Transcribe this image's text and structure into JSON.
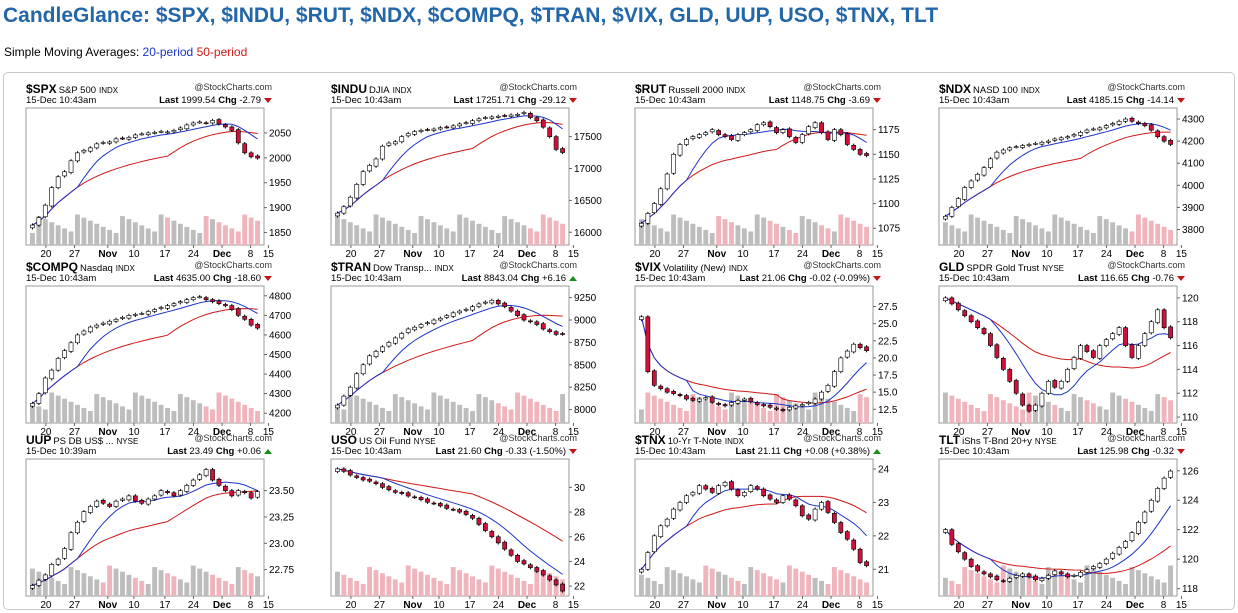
{
  "page": {
    "title": "CandleGlance: $SPX, $INDU, $RUT, $NDX, $COMPQ, $TRAN, $VIX, GLD, UUP, USO, $TNX, TLT",
    "sma_label": "Simple Moving Averages:",
    "sma20_label": "20-period",
    "sma50_label": "50-period",
    "colors": {
      "title": "#2467a8",
      "sma20": "#1d33c9",
      "sma50": "#d01818",
      "up_candle": "#ffffff",
      "down_candle": "#d0103a",
      "volume_up": "#bdbdbd",
      "volume_down": "#f0b4bc"
    }
  },
  "brand": "@StockCharts.com",
  "chart_data": [
    {
      "type": "candlestick",
      "symbol": "$SPX",
      "name": "S&P 500",
      "exchange": "INDX",
      "datetime": "15-Dec 10:43am",
      "last": "1999.54",
      "chg": "-2.79",
      "direction": "down",
      "y_ticks": [
        "2050",
        "2000",
        "1950",
        "1900",
        "1850"
      ],
      "ylim": [
        1825,
        2100
      ],
      "x_ticks": [
        "20",
        "27",
        "Nov",
        "10",
        "17",
        "24",
        "Dec",
        "8",
        "15"
      ],
      "close": [
        1865,
        1880,
        1905,
        1940,
        1962,
        1972,
        1994,
        2010,
        2015,
        2020,
        2028,
        2031,
        2032,
        2038,
        2039,
        2041,
        2046,
        2048,
        2050,
        2051,
        2053,
        2052,
        2055,
        2060,
        2066,
        2070,
        2072,
        2070,
        2075,
        2068,
        2062,
        2055,
        2030,
        2010,
        2002,
        1999.5
      ]
    },
    {
      "type": "candlestick",
      "symbol": "$INDU",
      "name": "DJIA",
      "exchange": "INDX",
      "datetime": "15-Dec 10:43am",
      "last": "17251.71",
      "chg": "-29.12",
      "direction": "down",
      "y_ticks": [
        "17500",
        "17000",
        "16500",
        "16000"
      ],
      "ylim": [
        15800,
        17950
      ],
      "x_ticks": [
        "20",
        "27",
        "Nov",
        "10",
        "17",
        "24",
        "Dec",
        "8",
        "15"
      ],
      "close": [
        16300,
        16400,
        16550,
        16750,
        16950,
        17050,
        17150,
        17350,
        17400,
        17420,
        17500,
        17550,
        17580,
        17600,
        17610,
        17620,
        17640,
        17650,
        17670,
        17700,
        17720,
        17750,
        17780,
        17800,
        17810,
        17820,
        17830,
        17840,
        17850,
        17880,
        17800,
        17750,
        17650,
        17500,
        17300,
        17251.7
      ]
    },
    {
      "type": "candlestick",
      "symbol": "$RUT",
      "name": "Russell 2000",
      "exchange": "INDX",
      "datetime": "15-Dec 10:43am",
      "last": "1148.75",
      "chg": "-3.69",
      "direction": "down",
      "y_ticks": [
        "1175",
        "1150",
        "1125",
        "1100",
        "1075"
      ],
      "ylim": [
        1058,
        1197
      ],
      "x_ticks": [
        "20",
        "27",
        "Nov",
        "10",
        "17",
        "24",
        "Dec",
        "8",
        "15"
      ],
      "close": [
        1080,
        1090,
        1100,
        1115,
        1130,
        1150,
        1160,
        1165,
        1168,
        1170,
        1172,
        1175,
        1170,
        1168,
        1165,
        1170,
        1172,
        1175,
        1180,
        1182,
        1178,
        1172,
        1175,
        1168,
        1162,
        1170,
        1178,
        1182,
        1172,
        1165,
        1175,
        1170,
        1160,
        1155,
        1150,
        1148.75
      ]
    },
    {
      "type": "candlestick",
      "symbol": "$NDX",
      "name": "NASD 100",
      "exchange": "INDX",
      "datetime": "15-Dec 10:43am",
      "last": "4185.15",
      "chg": "-14.14",
      "direction": "down",
      "y_ticks": [
        "4300",
        "4200",
        "4100",
        "4000",
        "3900",
        "3800"
      ],
      "ylim": [
        3730,
        4350
      ],
      "x_ticks": [
        "20",
        "27",
        "Nov",
        "10",
        "17",
        "24",
        "Dec",
        "8",
        "15"
      ],
      "close": [
        3860,
        3900,
        3940,
        3990,
        4020,
        4050,
        4080,
        4120,
        4150,
        4160,
        4170,
        4175,
        4180,
        4185,
        4190,
        4195,
        4200,
        4210,
        4215,
        4220,
        4230,
        4240,
        4250,
        4255,
        4260,
        4270,
        4280,
        4290,
        4300,
        4290,
        4280,
        4270,
        4250,
        4220,
        4200,
        4185.15
      ]
    },
    {
      "type": "candlestick",
      "symbol": "$COMPQ",
      "name": "Nasdaq",
      "exchange": "INDX",
      "datetime": "15-Dec 10:43am",
      "last": "4635.00",
      "chg": "-18.60",
      "direction": "down",
      "y_ticks": [
        "4800",
        "4700",
        "4600",
        "4500",
        "4400",
        "4300",
        "4200"
      ],
      "ylim": [
        4150,
        4850
      ],
      "x_ticks": [
        "20",
        "27",
        "Nov",
        "10",
        "17",
        "24",
        "Dec",
        "8",
        "15"
      ],
      "close": [
        4250,
        4300,
        4380,
        4420,
        4480,
        4520,
        4560,
        4600,
        4620,
        4640,
        4650,
        4660,
        4670,
        4680,
        4690,
        4700,
        4705,
        4710,
        4720,
        4730,
        4740,
        4750,
        4760,
        4770,
        4780,
        4790,
        4795,
        4780,
        4770,
        4760,
        4750,
        4730,
        4700,
        4680,
        4650,
        4635
      ]
    },
    {
      "type": "candlestick",
      "symbol": "$TRAN",
      "name": "Dow Transp...",
      "exchange": "INDX",
      "datetime": "15-Dec 10:43am",
      "last": "8843.04",
      "chg": "+6.16",
      "direction": "up",
      "y_ticks": [
        "9250",
        "9000",
        "8750",
        "8500",
        "8250",
        "8000"
      ],
      "ylim": [
        7850,
        9380
      ],
      "x_ticks": [
        "20",
        "27",
        "Nov",
        "10",
        "17",
        "24",
        "Dec",
        "8",
        "15"
      ],
      "close": [
        8050,
        8150,
        8250,
        8400,
        8500,
        8600,
        8650,
        8700,
        8750,
        8800,
        8850,
        8900,
        8920,
        8950,
        8970,
        9000,
        9020,
        9050,
        9080,
        9100,
        9120,
        9150,
        9180,
        9200,
        9220,
        9180,
        9150,
        9100,
        9050,
        9000,
        8980,
        8950,
        8900,
        8870,
        8840,
        8843
      ]
    },
    {
      "type": "candlestick",
      "symbol": "$VIX",
      "name": "Volatility (New)",
      "exchange": "INDX",
      "datetime": "15-Dec 10:43am",
      "last": "21.06",
      "chg": "-0.02 (-0.09%)",
      "direction": "down",
      "y_ticks": [
        "27.5",
        "25.0",
        "22.5",
        "20.0",
        "17.5",
        "15.0",
        "12.5"
      ],
      "ylim": [
        10.5,
        30.5
      ],
      "x_ticks": [
        "20",
        "27",
        "Nov",
        "10",
        "17",
        "24",
        "Dec",
        "8",
        "15"
      ],
      "close": [
        26,
        18,
        16,
        15.5,
        15,
        14.8,
        14.5,
        14,
        13.8,
        14,
        14.2,
        13.5,
        13.2,
        13,
        13.5,
        13.8,
        14,
        13.6,
        13.2,
        13,
        12.8,
        12.5,
        12.3,
        12.8,
        13,
        13.2,
        13.5,
        14,
        15,
        16,
        18,
        20,
        21,
        22,
        21.5,
        21.06
      ]
    },
    {
      "type": "candlestick",
      "symbol": "GLD",
      "name": "SPDR Gold Trust",
      "exchange": "NYSE",
      "datetime": "15-Dec 10:43am",
      "last": "116.65",
      "chg": "-0.76",
      "direction": "down",
      "y_ticks": [
        "120",
        "118",
        "116",
        "114",
        "112",
        "110"
      ],
      "ylim": [
        109.5,
        121
      ],
      "x_ticks": [
        "20",
        "27",
        "Nov",
        "10",
        "17",
        "24",
        "Dec",
        "8",
        "15"
      ],
      "close": [
        120,
        119.5,
        119,
        118.5,
        118,
        117.5,
        117,
        116,
        115,
        114,
        113,
        112,
        111,
        110.5,
        111,
        112,
        113,
        112.5,
        113,
        114,
        115,
        116,
        115.5,
        115,
        116,
        116.5,
        117,
        117.5,
        116,
        115,
        116,
        117,
        118,
        119,
        117.5,
        116.65
      ]
    },
    {
      "type": "candlestick",
      "symbol": "UUP",
      "name": "PS DB US$ ...",
      "exchange": "NYSE",
      "datetime": "15-Dec 10:39am",
      "last": "23.49",
      "chg": "+0.06",
      "direction": "up",
      "y_ticks": [
        "23.50",
        "23.25",
        "23.00",
        "22.75"
      ],
      "ylim": [
        22.5,
        23.8
      ],
      "x_ticks": [
        "20",
        "27",
        "Nov",
        "10",
        "17",
        "24",
        "Dec",
        "8",
        "15"
      ],
      "close": [
        22.6,
        22.65,
        22.7,
        22.8,
        22.85,
        22.95,
        23.1,
        23.2,
        23.3,
        23.35,
        23.4,
        23.38,
        23.35,
        23.4,
        23.42,
        23.45,
        23.4,
        23.38,
        23.42,
        23.45,
        23.5,
        23.48,
        23.45,
        23.5,
        23.55,
        23.6,
        23.65,
        23.7,
        23.6,
        23.55,
        23.5,
        23.45,
        23.5,
        23.48,
        23.43,
        23.49
      ]
    },
    {
      "type": "candlestick",
      "symbol": "USO",
      "name": "US Oil Fund",
      "exchange": "NYSE",
      "datetime": "15-Dec 10:43am",
      "last": "21.60",
      "chg": "-0.33 (-1.50%)",
      "direction": "down",
      "y_ticks": [
        "30",
        "28",
        "26",
        "24",
        "22"
      ],
      "ylim": [
        21.2,
        32.3
      ],
      "x_ticks": [
        "20",
        "27",
        "Nov",
        "10",
        "17",
        "24",
        "Dec",
        "8",
        "15"
      ],
      "close": [
        31.5,
        31.3,
        31,
        30.8,
        30.6,
        30.5,
        30.3,
        30,
        29.8,
        29.6,
        29.5,
        29.3,
        29.2,
        29,
        28.8,
        28.7,
        28.5,
        28.3,
        28.2,
        28,
        27.8,
        27.5,
        27,
        26.5,
        26,
        25.5,
        25,
        24.5,
        24,
        23.8,
        23.5,
        23.2,
        22.9,
        22.5,
        22.1,
        21.6
      ]
    },
    {
      "type": "candlestick",
      "symbol": "$TNX",
      "name": "10-Yr T-Note",
      "exchange": "INDX",
      "datetime": "15-Dec 10:43am",
      "last": "21.11",
      "chg": "+0.08 (+0.38%)",
      "direction": "up",
      "y_ticks": [
        "24",
        "23",
        "22",
        "21"
      ],
      "ylim": [
        20.2,
        24.3
      ],
      "x_ticks": [
        "20",
        "27",
        "Nov",
        "10",
        "17",
        "24",
        "Dec",
        "8",
        "15"
      ],
      "close": [
        21,
        21.5,
        22,
        22.3,
        22.5,
        22.8,
        23,
        23.2,
        23.3,
        23.5,
        23.4,
        23.3,
        23.5,
        23.6,
        23.4,
        23.2,
        23.3,
        23.5,
        23.4,
        23.2,
        23.1,
        23,
        23.2,
        23.1,
        22.9,
        22.6,
        22.5,
        22.8,
        23,
        22.7,
        22.4,
        22.1,
        21.9,
        21.6,
        21.2,
        21.11
      ]
    },
    {
      "type": "candlestick",
      "symbol": "TLT",
      "name": "iShs T-Bnd 20+y",
      "exchange": "NYSE",
      "datetime": "15-Dec 10:43am",
      "last": "125.98",
      "chg": "-0.32",
      "direction": "down",
      "y_ticks": [
        "126",
        "124",
        "122",
        "120",
        "118"
      ],
      "ylim": [
        117.5,
        126.8
      ],
      "x_ticks": [
        "20",
        "27",
        "Nov",
        "10",
        "17",
        "24",
        "Dec",
        "8",
        "15"
      ],
      "close": [
        122,
        121,
        120.5,
        120,
        119.5,
        119.2,
        119,
        118.8,
        118.6,
        118.5,
        118.7,
        118.9,
        119,
        118.8,
        118.6,
        118.7,
        118.9,
        119.2,
        119,
        118.8,
        118.9,
        119.1,
        119.3,
        119.5,
        119.7,
        120,
        120.4,
        120.8,
        121.2,
        121.8,
        122.5,
        123.2,
        124,
        124.8,
        125.5,
        125.98
      ]
    }
  ]
}
